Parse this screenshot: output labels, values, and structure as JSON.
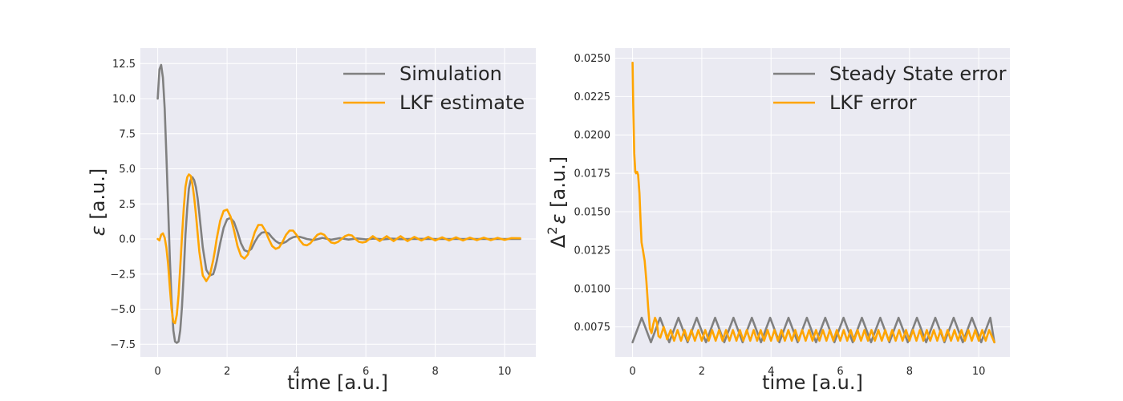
{
  "chart_data": [
    {
      "type": "line",
      "xlabel": "time [a.u.]",
      "ylabel_symbol": "ε",
      "ylabel_unit": " [a.u.]",
      "xlim": [
        -0.5,
        10.9
      ],
      "ylim": [
        -8.4,
        13.6
      ],
      "xticks": [
        0,
        2,
        4,
        6,
        8,
        10
      ],
      "xtick_labels": [
        "0",
        "2",
        "4",
        "6",
        "8",
        "10"
      ],
      "yticks": [
        -7.5,
        -5.0,
        -2.5,
        0.0,
        2.5,
        5.0,
        7.5,
        10.0,
        12.5
      ],
      "ytick_labels": [
        "−7.5",
        "−5.0",
        "−2.5",
        "0.0",
        "2.5",
        "5.0",
        "7.5",
        "10.0",
        "12.5"
      ],
      "grid": true,
      "legend_position": "top-right",
      "series": [
        {
          "name": "Simulation",
          "color": "#808080",
          "x": [
            0,
            0.05,
            0.1,
            0.15,
            0.2,
            0.25,
            0.3,
            0.35,
            0.4,
            0.45,
            0.5,
            0.55,
            0.6,
            0.65,
            0.7,
            0.75,
            0.8,
            0.85,
            0.9,
            0.95,
            1.0,
            1.05,
            1.1,
            1.15,
            1.2,
            1.3,
            1.4,
            1.5,
            1.6,
            1.65,
            1.7,
            1.8,
            1.9,
            2.0,
            2.1,
            2.2,
            2.3,
            2.4,
            2.5,
            2.6,
            2.7,
            2.8,
            2.9,
            3.0,
            3.1,
            3.2,
            3.3,
            3.4,
            3.5,
            3.6,
            3.7,
            3.8,
            3.9,
            4.0,
            4.1,
            4.2,
            4.3,
            4.5,
            4.75,
            5.0,
            5.25,
            5.5,
            5.75,
            6.0,
            6.25,
            6.5,
            6.75,
            7.0,
            7.5,
            8.0,
            8.5,
            9.0,
            9.5,
            10.0,
            10.45
          ],
          "y": [
            10.0,
            12.1,
            12.4,
            11.5,
            9.3,
            6.0,
            2.3,
            -1.5,
            -4.4,
            -6.5,
            -7.3,
            -7.4,
            -7.3,
            -6.5,
            -4.8,
            -2.4,
            0.3,
            2.2,
            3.6,
            4.2,
            4.4,
            4.2,
            3.7,
            2.9,
            1.8,
            -0.6,
            -2.2,
            -2.6,
            -2.5,
            -2.1,
            -1.6,
            -0.3,
            0.8,
            1.4,
            1.5,
            1.2,
            0.5,
            -0.3,
            -0.8,
            -0.9,
            -0.7,
            -0.2,
            0.2,
            0.45,
            0.5,
            0.4,
            0.1,
            -0.15,
            -0.3,
            -0.3,
            -0.2,
            0.0,
            0.12,
            0.18,
            0.15,
            0.08,
            0.0,
            -0.08,
            0.08,
            -0.05,
            0.06,
            -0.04,
            0.04,
            -0.03,
            0.03,
            -0.02,
            0.02,
            -0.01,
            0.01,
            0.0,
            0.0,
            0.0,
            0.0,
            0.0,
            0.0
          ]
        },
        {
          "name": "LKF estimate",
          "color": "#ffa500",
          "x": [
            0,
            0.05,
            0.1,
            0.15,
            0.2,
            0.25,
            0.3,
            0.35,
            0.4,
            0.45,
            0.5,
            0.55,
            0.6,
            0.65,
            0.7,
            0.75,
            0.8,
            0.85,
            0.9,
            0.95,
            1.0,
            1.05,
            1.1,
            1.15,
            1.2,
            1.3,
            1.4,
            1.5,
            1.6,
            1.65,
            1.7,
            1.8,
            1.9,
            2.0,
            2.1,
            2.2,
            2.3,
            2.4,
            2.5,
            2.6,
            2.7,
            2.8,
            2.9,
            3.0,
            3.1,
            3.2,
            3.3,
            3.4,
            3.5,
            3.6,
            3.7,
            3.8,
            3.9,
            4.0,
            4.1,
            4.2,
            4.3,
            4.4,
            4.5,
            4.6,
            4.7,
            4.8,
            4.9,
            5.0,
            5.1,
            5.2,
            5.3,
            5.4,
            5.5,
            5.6,
            5.7,
            5.8,
            5.9,
            6.0,
            6.2,
            6.4,
            6.6,
            6.8,
            7.0,
            7.2,
            7.4,
            7.6,
            7.8,
            8.0,
            8.2,
            8.4,
            8.6,
            8.8,
            9.0,
            9.2,
            9.4,
            9.6,
            9.8,
            10.0,
            10.2,
            10.45
          ],
          "y": [
            0.0,
            -0.1,
            0.3,
            0.4,
            0.1,
            -0.6,
            -1.8,
            -3.5,
            -5.0,
            -5.9,
            -6.0,
            -5.4,
            -4.0,
            -2.0,
            0.2,
            2.2,
            3.7,
            4.4,
            4.6,
            4.5,
            3.9,
            3.0,
            1.8,
            0.4,
            -0.9,
            -2.6,
            -3.0,
            -2.6,
            -1.5,
            -0.8,
            0.0,
            1.3,
            2.0,
            2.1,
            1.6,
            0.6,
            -0.5,
            -1.2,
            -1.4,
            -1.1,
            -0.3,
            0.5,
            1.0,
            1.0,
            0.6,
            0.0,
            -0.5,
            -0.7,
            -0.6,
            -0.2,
            0.3,
            0.6,
            0.6,
            0.3,
            -0.1,
            -0.4,
            -0.45,
            -0.3,
            0.0,
            0.3,
            0.4,
            0.3,
            0.0,
            -0.25,
            -0.3,
            -0.2,
            0.0,
            0.2,
            0.3,
            0.25,
            0.0,
            -0.2,
            -0.25,
            -0.2,
            0.2,
            -0.15,
            0.2,
            -0.15,
            0.2,
            -0.15,
            0.15,
            -0.1,
            0.15,
            -0.1,
            0.12,
            -0.1,
            0.12,
            -0.1,
            0.1,
            -0.08,
            0.1,
            -0.08,
            0.08,
            -0.06,
            0.06,
            0.05
          ]
        }
      ]
    },
    {
      "type": "line",
      "xlabel": "time [a.u.]",
      "ylabel_symbol": "Δ",
      "ylabel_exp": "2",
      "ylabel_symbol2": "ε",
      "ylabel_unit": " [a.u.]",
      "xlim": [
        -0.5,
        10.9
      ],
      "ylim": [
        0.00555,
        0.02565
      ],
      "xticks": [
        0,
        2,
        4,
        6,
        8,
        10
      ],
      "xtick_labels": [
        "0",
        "2",
        "4",
        "6",
        "8",
        "10"
      ],
      "yticks": [
        0.0075,
        0.01,
        0.0125,
        0.015,
        0.0175,
        0.02,
        0.0225,
        0.025
      ],
      "ytick_labels": [
        "0.0075",
        "0.0100",
        "0.0125",
        "0.0150",
        "0.0175",
        "0.0200",
        "0.0225",
        "0.0250"
      ],
      "grid": true,
      "legend_position": "top-right",
      "series": [
        {
          "name": "Steady State error",
          "color": "#808080",
          "description": "periodic oscillation between 0.0065 and 0.0081, period 0.53",
          "x": [
            0,
            0.265,
            0.53,
            0.795,
            1.06,
            1.325,
            1.59,
            1.855,
            2.12,
            2.385,
            2.65,
            2.915,
            3.18,
            3.445,
            3.71,
            3.975,
            4.24,
            4.505,
            4.77,
            5.035,
            5.3,
            5.565,
            5.83,
            6.095,
            6.36,
            6.625,
            6.89,
            7.155,
            7.42,
            7.685,
            7.95,
            8.215,
            8.48,
            8.745,
            9.01,
            9.275,
            9.54,
            9.805,
            10.07,
            10.335,
            10.45
          ],
          "y": [
            0.0065,
            0.0081,
            0.0065,
            0.0081,
            0.0065,
            0.0081,
            0.0065,
            0.0081,
            0.0065,
            0.0081,
            0.0065,
            0.0081,
            0.0065,
            0.0081,
            0.0065,
            0.0081,
            0.0065,
            0.0081,
            0.0065,
            0.0081,
            0.0065,
            0.0081,
            0.0065,
            0.0081,
            0.0065,
            0.0081,
            0.0065,
            0.0081,
            0.0065,
            0.0081,
            0.0065,
            0.0081,
            0.0065,
            0.0081,
            0.0065,
            0.0081,
            0.0065,
            0.0081,
            0.0065,
            0.0081,
            0.0065
          ]
        },
        {
          "name": "LKF error",
          "color": "#ffa500",
          "x": [
            0,
            0.02,
            0.05,
            0.08,
            0.1,
            0.13,
            0.16,
            0.2,
            0.23,
            0.26,
            0.3,
            0.35,
            0.4,
            0.45,
            0.5,
            0.55,
            0.6,
            0.65,
            0.7,
            0.75,
            0.8,
            0.9,
            1.0,
            1.1,
            1.2,
            1.3,
            1.4,
            1.5,
            1.6,
            1.7,
            1.8,
            1.9,
            2.0,
            2.1,
            2.2,
            2.3,
            2.4,
            2.5,
            2.6,
            2.7,
            2.8,
            2.9,
            3.0,
            3.1,
            3.2,
            3.3,
            3.4,
            3.5,
            3.6,
            3.7,
            3.8,
            3.9,
            4.0,
            4.1,
            4.2,
            4.3,
            4.4,
            4.5,
            4.6,
            4.7,
            4.8,
            4.9,
            5.0,
            5.1,
            5.2,
            5.3,
            5.4,
            5.5,
            5.6,
            5.7,
            5.8,
            5.9,
            6.0,
            6.1,
            6.2,
            6.3,
            6.4,
            6.5,
            6.6,
            6.7,
            6.8,
            6.9,
            7.0,
            7.1,
            7.2,
            7.3,
            7.4,
            7.5,
            7.6,
            7.7,
            7.8,
            7.9,
            8.0,
            8.1,
            8.2,
            8.3,
            8.4,
            8.5,
            8.6,
            8.7,
            8.8,
            8.9,
            9.0,
            9.1,
            9.2,
            9.3,
            9.4,
            9.5,
            9.6,
            9.7,
            9.8,
            9.9,
            10.0,
            10.1,
            10.2,
            10.3,
            10.45
          ],
          "y": [
            0.0247,
            0.022,
            0.0188,
            0.0176,
            0.0175,
            0.0176,
            0.0174,
            0.0162,
            0.0145,
            0.013,
            0.0125,
            0.0118,
            0.0105,
            0.0088,
            0.0074,
            0.0071,
            0.0077,
            0.0081,
            0.0078,
            0.0069,
            0.0068,
            0.0075,
            0.0067,
            0.0073,
            0.0066,
            0.0073,
            0.0066,
            0.0073,
            0.0066,
            0.0073,
            0.0066,
            0.0073,
            0.0066,
            0.0073,
            0.0066,
            0.0073,
            0.0066,
            0.0073,
            0.0066,
            0.0073,
            0.0066,
            0.0073,
            0.0066,
            0.0073,
            0.0066,
            0.0073,
            0.0066,
            0.0073,
            0.0066,
            0.0073,
            0.0066,
            0.0073,
            0.0066,
            0.0073,
            0.0066,
            0.0073,
            0.0066,
            0.0073,
            0.0066,
            0.0073,
            0.0066,
            0.0073,
            0.0066,
            0.0073,
            0.0066,
            0.0073,
            0.0066,
            0.0073,
            0.0066,
            0.0073,
            0.0066,
            0.0073,
            0.0066,
            0.0073,
            0.0066,
            0.0073,
            0.0066,
            0.0073,
            0.0066,
            0.0073,
            0.0066,
            0.0073,
            0.0066,
            0.0073,
            0.0066,
            0.0073,
            0.0066,
            0.0073,
            0.0066,
            0.0073,
            0.0066,
            0.0073,
            0.0066,
            0.0073,
            0.0066,
            0.0073,
            0.0066,
            0.0073,
            0.0066,
            0.0073,
            0.0066,
            0.0073,
            0.0066,
            0.0073,
            0.0066,
            0.0073,
            0.0066,
            0.0073,
            0.0066,
            0.0073,
            0.0066,
            0.0073,
            0.0066,
            0.0073,
            0.0066,
            0.0073,
            0.0065
          ]
        }
      ]
    }
  ]
}
